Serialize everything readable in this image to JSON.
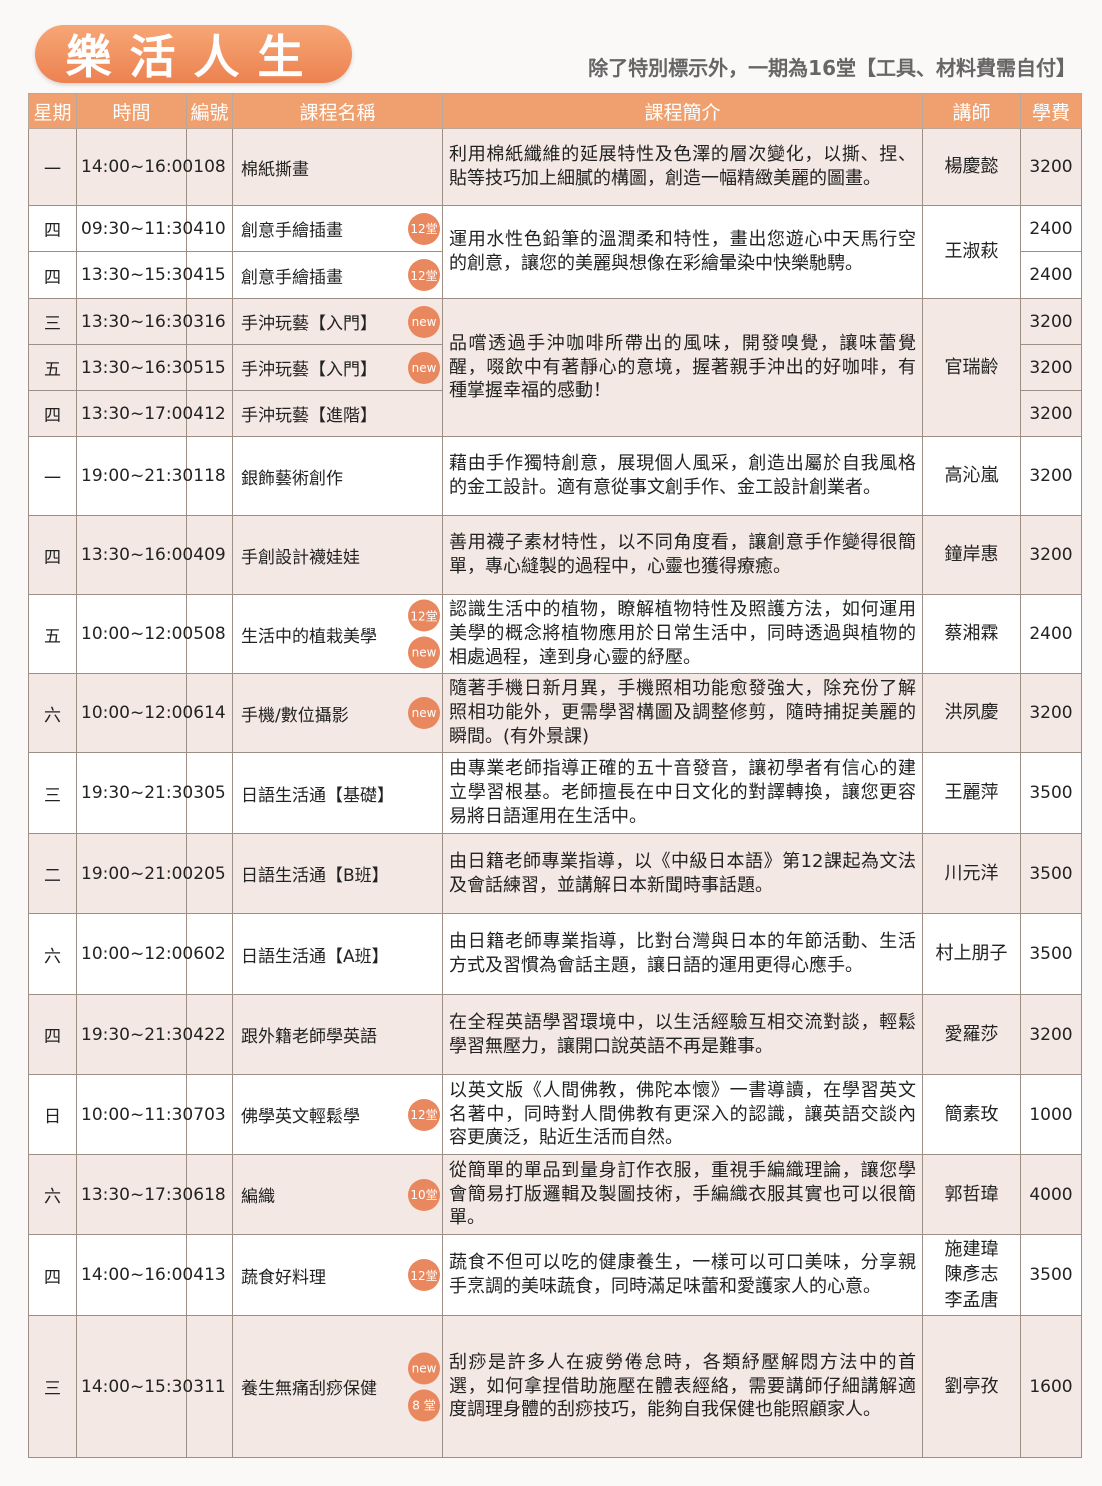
{
  "header": {
    "title": "樂活人生",
    "note": "除了特別標示外，一期為16堂【工具、材料費需自付】"
  },
  "table": {
    "columns": [
      "星期",
      "時間",
      "編號",
      "課程名稱",
      "課程簡介",
      "講師",
      "學費"
    ],
    "groups": [
      {
        "description": "利用棉紙纖維的延展特性及色澤的層次變化，以撕、捏、貼等技巧加上細膩的構圖，創造一幅精緻美麗的圖畫。",
        "teachers": [
          "楊慶懿"
        ],
        "courses": [
          {
            "day": "一",
            "time": "14:00~16:00",
            "code": "108",
            "name": "棉紙撕畫",
            "badges": [],
            "fee": 3200
          }
        ]
      },
      {
        "description": "運用水性色鉛筆的溫潤柔和特性，畫出您遊心中天馬行空的創意，讓您的美麗與想像在彩繪暈染中快樂馳騁。",
        "teachers": [
          "王淑萩"
        ],
        "courses": [
          {
            "day": "四",
            "time": "09:30~11:30",
            "code": "410",
            "name": "創意手繪插畫",
            "badges": [
              "12堂"
            ],
            "fee": 2400
          },
          {
            "day": "四",
            "time": "13:30~15:30",
            "code": "415",
            "name": "創意手繪插畫",
            "badges": [
              "12堂"
            ],
            "fee": 2400
          }
        ]
      },
      {
        "description": "品嚐透過手沖咖啡所帶出的風味，開發嗅覺，讓味蕾覺醒，啜飲中有著靜心的意境，握著親手沖出的好咖啡，有種掌握幸福的感動！",
        "teachers": [
          "官瑞齡"
        ],
        "courses": [
          {
            "day": "三",
            "time": "13:30~16:30",
            "code": "316",
            "name": "手沖玩藝【入門】",
            "badges": [
              "new"
            ],
            "fee": 3200
          },
          {
            "day": "五",
            "time": "13:30~16:30",
            "code": "515",
            "name": "手沖玩藝【入門】",
            "badges": [
              "new"
            ],
            "fee": 3200
          },
          {
            "day": "四",
            "time": "13:30~17:00",
            "code": "412",
            "name": "手沖玩藝【進階】",
            "badges": [],
            "fee": 3200
          }
        ]
      },
      {
        "description": "藉由手作獨特創意，展現個人風采，創造出屬於自我風格的金工設計。適有意從事文創手作、金工設計創業者。",
        "teachers": [
          "高沁嵐"
        ],
        "courses": [
          {
            "day": "一",
            "time": "19:00~21:30",
            "code": "118",
            "name": "銀飾藝術創作",
            "badges": [],
            "fee": 3200
          }
        ]
      },
      {
        "description": "善用襪子素材特性，以不同角度看，讓創意手作變得很簡單，專心縫製的過程中，心靈也獲得療癒。",
        "teachers": [
          "鐘岸惠"
        ],
        "courses": [
          {
            "day": "四",
            "time": "13:30~16:00",
            "code": "409",
            "name": "手創設計襪娃娃",
            "badges": [],
            "fee": 3200
          }
        ]
      },
      {
        "description": "認識生活中的植物，瞭解植物特性及照護方法，如何運用美學的概念將植物應用於日常生活中，同時透過與植物的相處過程，達到身心靈的紓壓。",
        "teachers": [
          "蔡湘霖"
        ],
        "courses": [
          {
            "day": "五",
            "time": "10:00~12:00",
            "code": "508",
            "name": "生活中的植栽美學",
            "badges": [
              "12堂",
              "new"
            ],
            "fee": 2400
          }
        ]
      },
      {
        "description": "隨著手機日新月異，手機照相功能愈發強大，除充份了解照相功能外，更需學習構圖及調整修剪，隨時捕捉美麗的瞬間。(有外景課)",
        "teachers": [
          "洪夙慶"
        ],
        "courses": [
          {
            "day": "六",
            "time": "10:00~12:00",
            "code": "614",
            "name": "手機/數位攝影",
            "badges": [
              "new"
            ],
            "fee": 3200
          }
        ]
      },
      {
        "description": "由專業老師指導正確的五十音發音，讓初學者有信心的建立學習根基。老師擅長在中日文化的對譯轉換，讓您更容易將日語運用在生活中。",
        "teachers": [
          "王麗萍"
        ],
        "courses": [
          {
            "day": "三",
            "time": "19:30~21:30",
            "code": "305",
            "name": "日語生活通【基礎】",
            "badges": [],
            "fee": 3500
          }
        ]
      },
      {
        "description": "由日籍老師專業指導，以《中級日本語》第12課起為文法及會話練習，並講解日本新聞時事話題。",
        "teachers": [
          "川元洋"
        ],
        "courses": [
          {
            "day": "二",
            "time": "19:00~21:00",
            "code": "205",
            "name": "日語生活通【B班】",
            "badges": [],
            "fee": 3500
          }
        ]
      },
      {
        "description": "由日籍老師專業指導，比對台灣與日本的年節活動、生活方式及習慣為會話主題，讓日語的運用更得心應手。",
        "teachers": [
          "村上朋子"
        ],
        "courses": [
          {
            "day": "六",
            "time": "10:00~12:00",
            "code": "602",
            "name": "日語生活通【A班】",
            "badges": [],
            "fee": 3500
          }
        ]
      },
      {
        "description": "在全程英語學習環境中，以生活經驗互相交流對談，輕鬆學習無壓力，讓開口說英語不再是難事。",
        "teachers": [
          "愛羅莎"
        ],
        "courses": [
          {
            "day": "四",
            "time": "19:30~21:30",
            "code": "422",
            "name": "跟外籍老師學英語",
            "badges": [],
            "fee": 3200
          }
        ]
      },
      {
        "description": "以英文版《人間佛教，佛陀本懷》一書導讀，在學習英文名著中，同時對人間佛教有更深入的認識，讓英語交談內容更廣泛，貼近生活而自然。",
        "teachers": [
          "簡素玫"
        ],
        "courses": [
          {
            "day": "日",
            "time": "10:00~11:30",
            "code": "703",
            "name": "佛學英文輕鬆學",
            "badges": [
              "12堂"
            ],
            "fee": 1000
          }
        ]
      },
      {
        "description": "從簡單的單品到量身訂作衣服，重視手編織理論，讓您學會簡易打版邏輯及製圖技術，手編織衣服其實也可以很簡單。",
        "teachers": [
          "郭哲瑋"
        ],
        "courses": [
          {
            "day": "六",
            "time": "13:30~17:30",
            "code": "618",
            "name": "編織",
            "badges": [
              "10堂"
            ],
            "fee": 4000
          }
        ]
      },
      {
        "description": "蔬食不但可以吃的健康養生，一樣可以可口美味，分享親手烹調的美味蔬食，同時滿足味蕾和愛護家人的心意。",
        "teachers": [
          "施建瑋",
          "陳彥志",
          "李孟唐"
        ],
        "courses": [
          {
            "day": "四",
            "time": "14:00~16:00",
            "code": "413",
            "name": "蔬食好料理",
            "badges": [
              "12堂"
            ],
            "fee": 3500
          }
        ]
      },
      {
        "description": "刮痧是許多人在疲勞倦怠時，各類紓壓解悶方法中的首選，如何拿捏借助施壓在體表經絡，需要講師仔細講解適度調理身體的刮痧技巧，能夠自我保健也能照顧家人。",
        "teachers": [
          "劉亭孜"
        ],
        "courses": [
          {
            "day": "三",
            "time": "14:00~15:30",
            "code": "311",
            "name": "養生無痛刮痧保健",
            "badges": [
              "new",
              "8 堂"
            ],
            "fee": 1600
          }
        ]
      }
    ]
  }
}
